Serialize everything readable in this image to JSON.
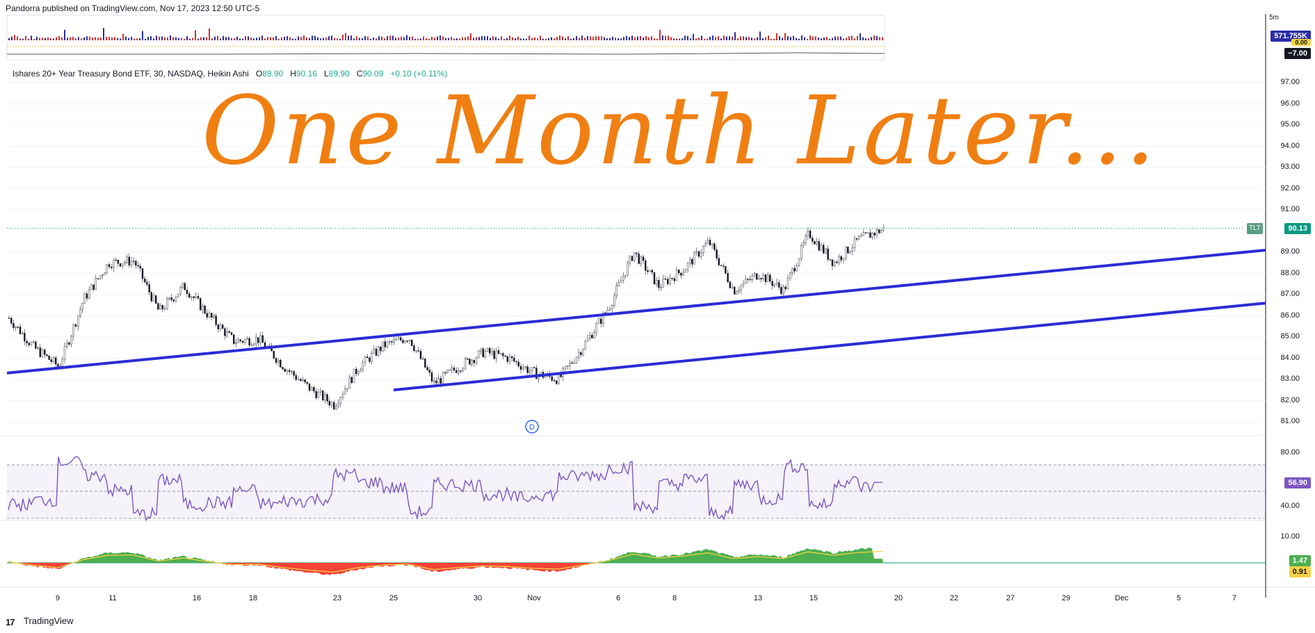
{
  "header": {
    "publisher": "Pandorra published on TradingView.com, Nov 17, 2023 12:50 UTC-5"
  },
  "symbol_line": {
    "name": "Ishares 20+ Year Treasury Bond ETF, 30, NASDAQ, Heikin Ashi",
    "o_label": "O",
    "o": "89.90",
    "h_label": "H",
    "h": "90.16",
    "l_label": "L",
    "l": "89.90",
    "c_label": "C",
    "c": "90.09",
    "change": "+0.10 (+0.11%)"
  },
  "overlay_title": "One Month Later...",
  "top_pane": {
    "axis_top": "5m",
    "badge_volume": "571.755K",
    "badge_zero": "0.00",
    "badge_neg": "−7.00"
  },
  "price_badge": {
    "symbol": "TLT",
    "value": "90.13"
  },
  "price_axis": [
    "97.00",
    "96.00",
    "95.00",
    "94.00",
    "93.00",
    "92.00",
    "91.00",
    "89.00",
    "88.00",
    "87.00",
    "86.00",
    "85.00",
    "84.00",
    "83.00",
    "82.00",
    "81.00"
  ],
  "rsi_axis": [
    "80.00",
    "40.00"
  ],
  "rsi_badge": "56.90",
  "macd_axis": [
    "10.00"
  ],
  "macd_badges": {
    "hist": "1.47",
    "signal": "0.91"
  },
  "date_axis": [
    "9",
    "11",
    "16",
    "18",
    "23",
    "25",
    "30",
    "Nov",
    "6",
    "8",
    "13",
    "15",
    "20",
    "22",
    "27",
    "29",
    "Dec",
    "5",
    "7"
  ],
  "event_marker": "D",
  "footer": {
    "brand": "TradingView",
    "logo_text": "17"
  },
  "colors": {
    "title": "#f07f12",
    "trendline": "#2b2bd6",
    "rsi": "#7e57c2",
    "macd_pos": "#4caf50",
    "macd_neg": "#f44336",
    "signal": "#f5d142",
    "up": "#089981",
    "down": "#f23645"
  },
  "chart_data": {
    "type": "candlestick",
    "title": "Ishares 20+ Year Treasury Bond ETF, 30, NASDAQ, Heikin Ashi",
    "ylim": [
      80.5,
      97.5
    ],
    "x_range": [
      "Oct 6 2023",
      "Dec 8 2023"
    ],
    "price_path": [
      {
        "date": "Oct 6",
        "close": 85.9
      },
      {
        "date": "Oct 9",
        "close": 84.5
      },
      {
        "date": "Oct 9",
        "close": 83.6
      },
      {
        "date": "Oct 10",
        "close": 86.8
      },
      {
        "date": "Oct 11",
        "close": 88.5
      },
      {
        "date": "Oct 12",
        "close": 88.6
      },
      {
        "date": "Oct 12",
        "close": 86.2
      },
      {
        "date": "Oct 13",
        "close": 87.4
      },
      {
        "date": "Oct 16",
        "close": 86.0
      },
      {
        "date": "Oct 17",
        "close": 84.8
      },
      {
        "date": "Oct 18",
        "close": 84.9
      },
      {
        "date": "Oct 19",
        "close": 83.6
      },
      {
        "date": "Oct 20",
        "close": 82.6
      },
      {
        "date": "Oct 23",
        "close": 81.8
      },
      {
        "date": "Oct 23",
        "close": 83.6
      },
      {
        "date": "Oct 24",
        "close": 84.6
      },
      {
        "date": "Oct 25",
        "close": 85.0
      },
      {
        "date": "Oct 26",
        "close": 82.8
      },
      {
        "date": "Oct 27",
        "close": 83.6
      },
      {
        "date": "Oct 27",
        "close": 84.3
      },
      {
        "date": "Oct 30",
        "close": 84.0
      },
      {
        "date": "Oct 31",
        "close": 83.3
      },
      {
        "date": "Oct 31",
        "close": 83.0
      },
      {
        "date": "Nov 1",
        "close": 84.6
      },
      {
        "date": "Nov 2",
        "close": 86.4
      },
      {
        "date": "Nov 3",
        "close": 89.0
      },
      {
        "date": "Nov 6",
        "close": 87.4
      },
      {
        "date": "Nov 7",
        "close": 88.2
      },
      {
        "date": "Nov 8",
        "close": 89.5
      },
      {
        "date": "Nov 9",
        "close": 87.2
      },
      {
        "date": "Nov 10",
        "close": 88.0
      },
      {
        "date": "Nov 13",
        "close": 87.2
      },
      {
        "date": "Nov 14",
        "close": 89.9
      },
      {
        "date": "Nov 15",
        "close": 88.5
      },
      {
        "date": "Nov 16",
        "close": 89.6
      },
      {
        "date": "Nov 17",
        "close": 90.1
      }
    ],
    "trendlines": [
      {
        "from": {
          "date": "Oct 6",
          "price": 83.3
        },
        "to": {
          "date": "Dec 8",
          "price": 89.1
        }
      },
      {
        "from": {
          "date": "Oct 25",
          "price": 82.5
        },
        "to": {
          "date": "Dec 8",
          "price": 86.6
        }
      }
    ],
    "current_price": 90.13,
    "rsi": {
      "ylim": [
        20,
        90
      ],
      "upper_band": 70,
      "lower_band": 30,
      "last": 56.9
    },
    "macd": {
      "last_hist": 1.47,
      "last_signal": 0.91
    }
  }
}
